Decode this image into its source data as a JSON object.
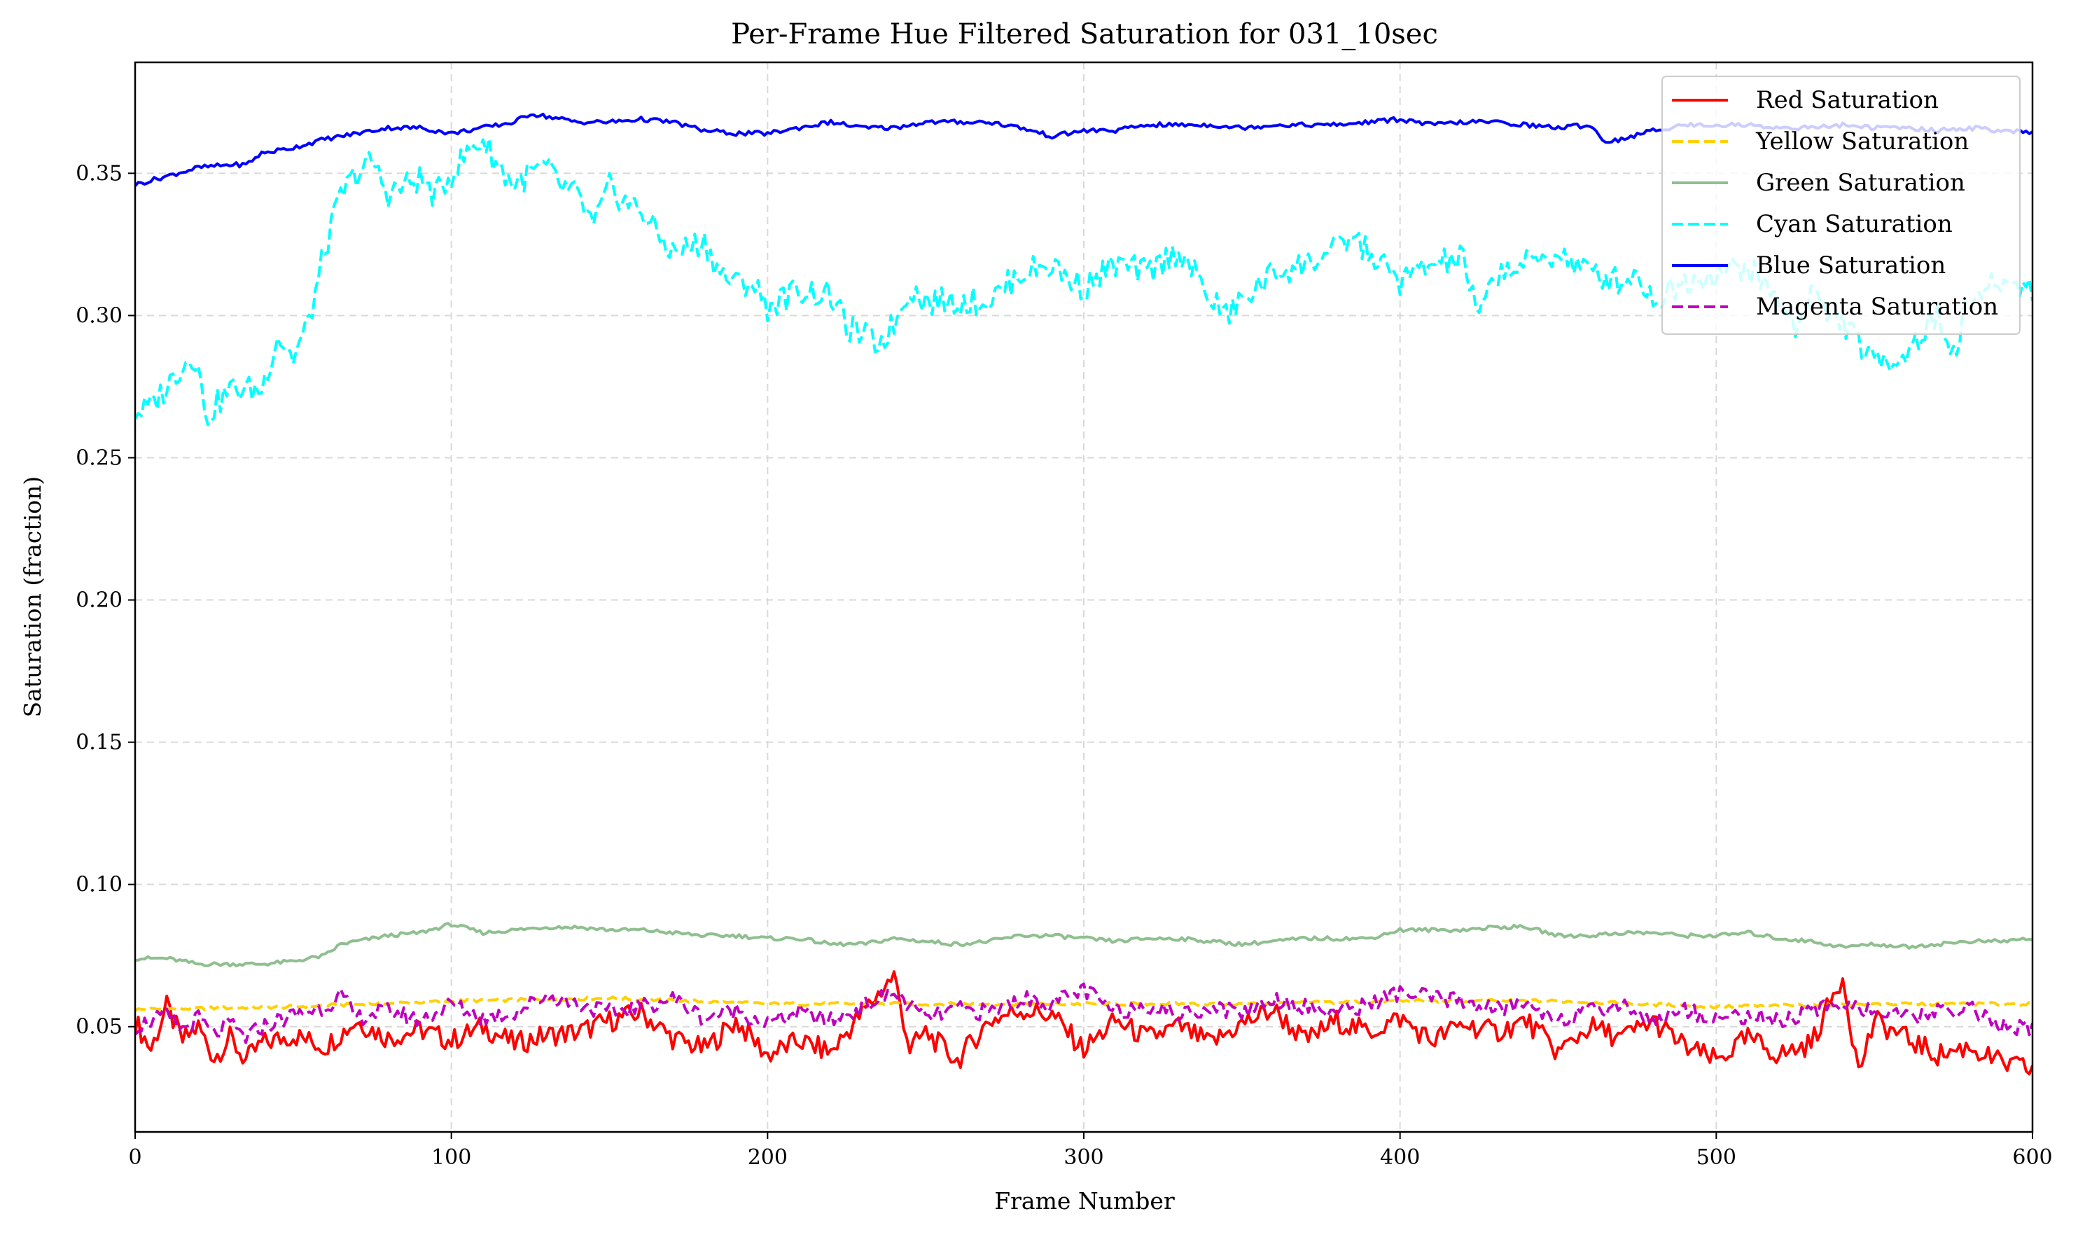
{
  "chart_data": {
    "type": "line",
    "title": "Per-Frame Hue Filtered Saturation for 031_10sec",
    "xlabel": "Frame Number",
    "ylabel": "Saturation (fraction)",
    "xlim": [
      0,
      600
    ],
    "ylim": [
      0.013,
      0.389
    ],
    "xticks": [
      "0",
      "100",
      "200",
      "300",
      "400",
      "500",
      "600"
    ],
    "yticks": [
      "0.05",
      "0.10",
      "0.15",
      "0.20",
      "0.25",
      "0.30",
      "0.35"
    ],
    "grid": true,
    "legend_position": "top-right",
    "series": [
      {
        "name": "Red Saturation",
        "color": "#ff0000",
        "dash": "solid",
        "x": [
          0,
          5,
          10,
          15,
          20,
          25,
          30,
          35,
          40,
          50,
          60,
          70,
          80,
          90,
          100,
          110,
          120,
          130,
          140,
          150,
          160,
          170,
          180,
          190,
          200,
          210,
          220,
          230,
          240,
          245,
          250,
          260,
          270,
          280,
          290,
          300,
          310,
          320,
          330,
          340,
          350,
          360,
          370,
          380,
          390,
          400,
          410,
          420,
          430,
          440,
          450,
          460,
          470,
          480,
          490,
          500,
          510,
          520,
          530,
          540,
          545,
          550,
          560,
          570,
          580,
          590,
          600
        ],
        "y": [
          0.052,
          0.042,
          0.057,
          0.045,
          0.05,
          0.039,
          0.046,
          0.038,
          0.044,
          0.047,
          0.043,
          0.052,
          0.046,
          0.049,
          0.045,
          0.05,
          0.044,
          0.047,
          0.048,
          0.052,
          0.055,
          0.046,
          0.042,
          0.052,
          0.04,
          0.045,
          0.041,
          0.055,
          0.068,
          0.042,
          0.048,
          0.038,
          0.052,
          0.056,
          0.054,
          0.042,
          0.052,
          0.046,
          0.05,
          0.044,
          0.051,
          0.056,
          0.045,
          0.052,
          0.048,
          0.053,
          0.045,
          0.051,
          0.048,
          0.052,
          0.041,
          0.05,
          0.046,
          0.052,
          0.043,
          0.038,
          0.046,
          0.04,
          0.044,
          0.068,
          0.034,
          0.052,
          0.046,
          0.04,
          0.043,
          0.037,
          0.035
        ]
      },
      {
        "name": "Yellow Saturation",
        "color": "#ffd000",
        "dash": "dashed",
        "x": [
          0,
          50,
          100,
          150,
          200,
          250,
          300,
          350,
          400,
          450,
          500,
          550,
          600
        ],
        "y": [
          0.056,
          0.057,
          0.059,
          0.06,
          0.058,
          0.058,
          0.058,
          0.058,
          0.059,
          0.059,
          0.057,
          0.058,
          0.058
        ]
      },
      {
        "name": "Green Saturation",
        "color": "#8fbf8f",
        "dash": "solid",
        "x": [
          0,
          10,
          20,
          30,
          40,
          50,
          60,
          65,
          70,
          80,
          90,
          100,
          110,
          120,
          130,
          140,
          150,
          160,
          170,
          180,
          190,
          200,
          210,
          220,
          230,
          240,
          250,
          260,
          270,
          280,
          290,
          300,
          310,
          320,
          330,
          340,
          350,
          360,
          370,
          380,
          390,
          400,
          410,
          420,
          430,
          440,
          450,
          460,
          470,
          480,
          490,
          500,
          510,
          520,
          530,
          540,
          550,
          560,
          570,
          580,
          590,
          600
        ],
        "y": [
          0.074,
          0.074,
          0.072,
          0.072,
          0.072,
          0.073,
          0.075,
          0.079,
          0.08,
          0.082,
          0.083,
          0.086,
          0.083,
          0.084,
          0.085,
          0.085,
          0.084,
          0.084,
          0.083,
          0.082,
          0.082,
          0.081,
          0.081,
          0.079,
          0.079,
          0.081,
          0.08,
          0.079,
          0.08,
          0.082,
          0.082,
          0.081,
          0.08,
          0.081,
          0.081,
          0.08,
          0.079,
          0.08,
          0.081,
          0.081,
          0.081,
          0.084,
          0.084,
          0.084,
          0.085,
          0.085,
          0.082,
          0.082,
          0.083,
          0.083,
          0.082,
          0.082,
          0.083,
          0.081,
          0.08,
          0.078,
          0.079,
          0.078,
          0.079,
          0.08,
          0.08,
          0.081
        ]
      },
      {
        "name": "Cyan Saturation",
        "color": "#00ffff",
        "dash": "dashed",
        "x": [
          0,
          5,
          10,
          15,
          20,
          22,
          25,
          30,
          40,
          45,
          50,
          55,
          60,
          65,
          70,
          75,
          80,
          90,
          95,
          100,
          105,
          110,
          115,
          120,
          125,
          130,
          135,
          140,
          145,
          150,
          155,
          160,
          165,
          170,
          180,
          185,
          190,
          195,
          200,
          210,
          220,
          225,
          230,
          235,
          240,
          245,
          250,
          260,
          270,
          280,
          290,
          295,
          300,
          310,
          320,
          330,
          340,
          345,
          350,
          360,
          370,
          380,
          385,
          390,
          400,
          410,
          420,
          425,
          430,
          440,
          450,
          460,
          470,
          475,
          480,
          490,
          500,
          510,
          520,
          525,
          530,
          535,
          540,
          550,
          560,
          570,
          575,
          580,
          590,
          600
        ],
        "y": [
          0.266,
          0.268,
          0.275,
          0.283,
          0.286,
          0.263,
          0.268,
          0.274,
          0.274,
          0.293,
          0.285,
          0.298,
          0.323,
          0.342,
          0.35,
          0.354,
          0.343,
          0.348,
          0.342,
          0.35,
          0.357,
          0.362,
          0.352,
          0.346,
          0.35,
          0.352,
          0.345,
          0.342,
          0.331,
          0.345,
          0.34,
          0.337,
          0.329,
          0.322,
          0.326,
          0.315,
          0.311,
          0.312,
          0.303,
          0.309,
          0.307,
          0.296,
          0.293,
          0.29,
          0.297,
          0.31,
          0.305,
          0.305,
          0.305,
          0.315,
          0.318,
          0.313,
          0.31,
          0.318,
          0.315,
          0.323,
          0.306,
          0.3,
          0.305,
          0.315,
          0.318,
          0.323,
          0.328,
          0.322,
          0.312,
          0.318,
          0.32,
          0.298,
          0.315,
          0.318,
          0.322,
          0.315,
          0.312,
          0.315,
          0.305,
          0.312,
          0.315,
          0.317,
          0.305,
          0.295,
          0.31,
          0.3,
          0.298,
          0.283,
          0.287,
          0.3,
          0.287,
          0.305,
          0.312,
          0.31
        ]
      },
      {
        "name": "Blue Saturation",
        "color": "#0000ff",
        "dash": "solid",
        "x": [
          0,
          10,
          20,
          30,
          35,
          40,
          50,
          60,
          70,
          80,
          90,
          100,
          110,
          120,
          125,
          130,
          140,
          150,
          160,
          170,
          180,
          190,
          200,
          210,
          220,
          230,
          240,
          250,
          260,
          270,
          280,
          290,
          300,
          310,
          320,
          330,
          340,
          350,
          360,
          370,
          380,
          390,
          400,
          410,
          420,
          430,
          440,
          450,
          460,
          465,
          470,
          480,
          490,
          500,
          510,
          520,
          530,
          540,
          550,
          560,
          570,
          580,
          590,
          600
        ],
        "y": [
          0.346,
          0.349,
          0.352,
          0.353,
          0.353,
          0.357,
          0.359,
          0.362,
          0.364,
          0.366,
          0.366,
          0.364,
          0.366,
          0.368,
          0.371,
          0.37,
          0.368,
          0.368,
          0.369,
          0.368,
          0.365,
          0.364,
          0.364,
          0.366,
          0.368,
          0.366,
          0.366,
          0.368,
          0.368,
          0.368,
          0.366,
          0.363,
          0.365,
          0.365,
          0.367,
          0.367,
          0.367,
          0.366,
          0.367,
          0.367,
          0.367,
          0.368,
          0.369,
          0.367,
          0.368,
          0.368,
          0.367,
          0.366,
          0.367,
          0.361,
          0.362,
          0.365,
          0.367,
          0.367,
          0.367,
          0.366,
          0.366,
          0.367,
          0.366,
          0.366,
          0.365,
          0.366,
          0.365,
          0.364
        ]
      },
      {
        "name": "Magenta Saturation",
        "color": "#bf00bf",
        "dash": "dashed",
        "x": [
          0,
          5,
          10,
          15,
          20,
          25,
          30,
          35,
          40,
          50,
          60,
          65,
          70,
          80,
          90,
          100,
          110,
          120,
          130,
          140,
          150,
          160,
          170,
          180,
          190,
          200,
          210,
          220,
          230,
          240,
          250,
          260,
          270,
          280,
          290,
          300,
          310,
          320,
          330,
          340,
          350,
          360,
          370,
          380,
          390,
          400,
          410,
          420,
          430,
          440,
          450,
          460,
          470,
          480,
          490,
          500,
          510,
          520,
          530,
          540,
          550,
          560,
          570,
          580,
          590,
          600
        ],
        "y": [
          0.05,
          0.052,
          0.054,
          0.049,
          0.053,
          0.047,
          0.051,
          0.046,
          0.05,
          0.054,
          0.057,
          0.061,
          0.053,
          0.056,
          0.052,
          0.058,
          0.053,
          0.055,
          0.061,
          0.058,
          0.055,
          0.057,
          0.06,
          0.053,
          0.056,
          0.051,
          0.055,
          0.052,
          0.057,
          0.062,
          0.053,
          0.056,
          0.055,
          0.06,
          0.058,
          0.063,
          0.055,
          0.058,
          0.054,
          0.057,
          0.055,
          0.06,
          0.057,
          0.055,
          0.058,
          0.062,
          0.06,
          0.059,
          0.056,
          0.058,
          0.053,
          0.055,
          0.058,
          0.052,
          0.056,
          0.053,
          0.054,
          0.052,
          0.055,
          0.059,
          0.055,
          0.053,
          0.055,
          0.057,
          0.05,
          0.049
        ]
      }
    ]
  }
}
